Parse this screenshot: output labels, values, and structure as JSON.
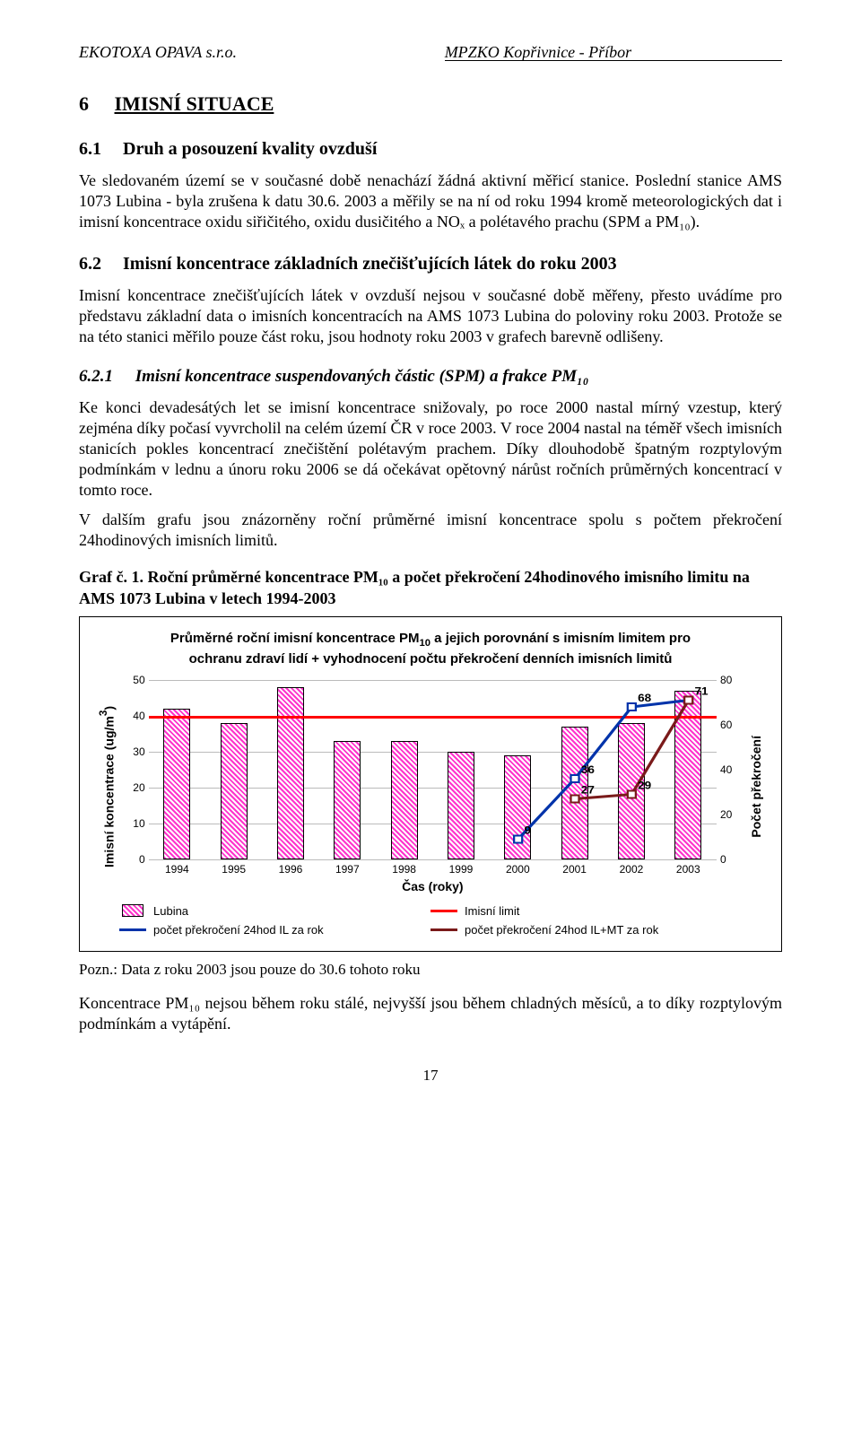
{
  "header": {
    "left": "EKOTOXA OPAVA s.r.o.",
    "right": "MPZKO Kopřivnice - Příbor"
  },
  "h1": {
    "num": "6",
    "title": "IMISNÍ SITUACE"
  },
  "h2a": {
    "num": "6.1",
    "title": "Druh a posouzení kvality ovzduší"
  },
  "p1": "Ve sledovaném území se v současné době nenachází žádná aktivní měřicí stanice. Poslední stanice AMS 1073 Lubina - byla zrušena k datu 30.6. 2003 a měřily se na ní od roku 1994 kromě meteorologických dat i imisní koncentrace oxidu siřičitého, oxidu dusičitého a NOₓ a polétavého prachu (SPM a PM₁₀).",
  "h2b": {
    "num": "6.2",
    "title": "Imisní koncentrace základních znečišťujících látek do roku 2003"
  },
  "p2": "Imisní koncentrace znečišťujících látek v ovzduší nejsou v současné době měřeny, přesto uvádíme pro představu základní data o imisních koncentracích na AMS 1073 Lubina do poloviny roku 2003. Protože se na této stanici měřilo pouze část roku, jsou hodnoty roku 2003 v grafech barevně odlišeny.",
  "h3": {
    "num": "6.2.1",
    "title": "Imisní koncentrace suspendovaných částic (SPM) a frakce PM₁₀"
  },
  "p3": "Ke konci devadesátých let se imisní koncentrace snižovaly, po roce 2000 nastal mírný vzestup, který zejména díky počasí vyvrcholil na celém území ČR v roce 2003. V roce 2004 nastal na téměř všech imisních stanicích pokles koncentrací znečištění polétavým prachem. Díky dlouhodobě špatným rozptylovým podmínkám v lednu a únoru roku 2006 se dá očekávat opětovný nárůst ročních průměrných koncentrací v tomto roce.",
  "p4": "V dalším grafu jsou znázorněny roční průměrné imisní koncentrace spolu s počtem překročení 24hodinových imisních limitů.",
  "graf_title": "Graf č. 1.  Roční průměrné koncentrace PM₁₀ a počet překročení 24hodinového imisního limitu na AMS 1073 Lubina v letech 1994-2003",
  "chart": {
    "type": "bar+line",
    "title_parts": [
      "Průměrné roční imisní koncentrace PM",
      "10",
      " a jejich porovnání s imisním limitem pro ochranu zdraví lidí + vyhodnocení počtu překročení denních imisních limitů"
    ],
    "ylabelL_parts": [
      "Imisní koncentrace (ug/m",
      "3",
      ")"
    ],
    "ylabelR": "Počet překročení",
    "xlabel": "Čas (roky)",
    "years": [
      "1994",
      "1995",
      "1996",
      "1997",
      "1998",
      "1999",
      "2000",
      "2001",
      "2002",
      "2003"
    ],
    "bar_values": [
      42,
      38,
      48,
      33,
      33,
      30,
      29,
      37,
      38,
      47
    ],
    "bar_color": "#ff33cc",
    "bar_bg": "#ffffff",
    "bar_border": "#000000",
    "ylimL": [
      0,
      50
    ],
    "ytickL": [
      0,
      10,
      20,
      30,
      40,
      50
    ],
    "ylimR": [
      0,
      80
    ],
    "ytickR": [
      0,
      20,
      40,
      60,
      80
    ],
    "limit_value": 40,
    "limit_color": "#ff0000",
    "line_blue": {
      "years": [
        "2000",
        "2001",
        "2002",
        "2003"
      ],
      "values": [
        9,
        36,
        68,
        71
      ],
      "color": "#0033aa",
      "labels": [
        "9",
        "36",
        "68",
        "71"
      ]
    },
    "line_dkred": {
      "years": [
        "2001",
        "2002",
        "2003"
      ],
      "values": [
        27,
        29,
        71
      ],
      "color": "#7a1a1a",
      "labels": [
        "27",
        "29",
        ""
      ]
    },
    "grid_color": "#bbbbbb",
    "background": "#ffffff",
    "legend": [
      {
        "type": "box",
        "text": "Lubina"
      },
      {
        "type": "line",
        "color": "#ff0000",
        "text": "Imisní limit"
      },
      {
        "type": "line",
        "color": "#0033aa",
        "text": "počet překročení 24hod IL za rok"
      },
      {
        "type": "line",
        "color": "#7a1a1a",
        "text": "počet překročení 24hod IL+MT za rok"
      }
    ]
  },
  "note": "Pozn.: Data z roku 2003 jsou pouze do 30.6 tohoto roku",
  "p5": "Koncentrace PM₁₀ nejsou během roku stálé, nejvyšší jsou během chladných měsíců, a to díky rozptylovým podmínkám a vytápění.",
  "pagenum": "17"
}
